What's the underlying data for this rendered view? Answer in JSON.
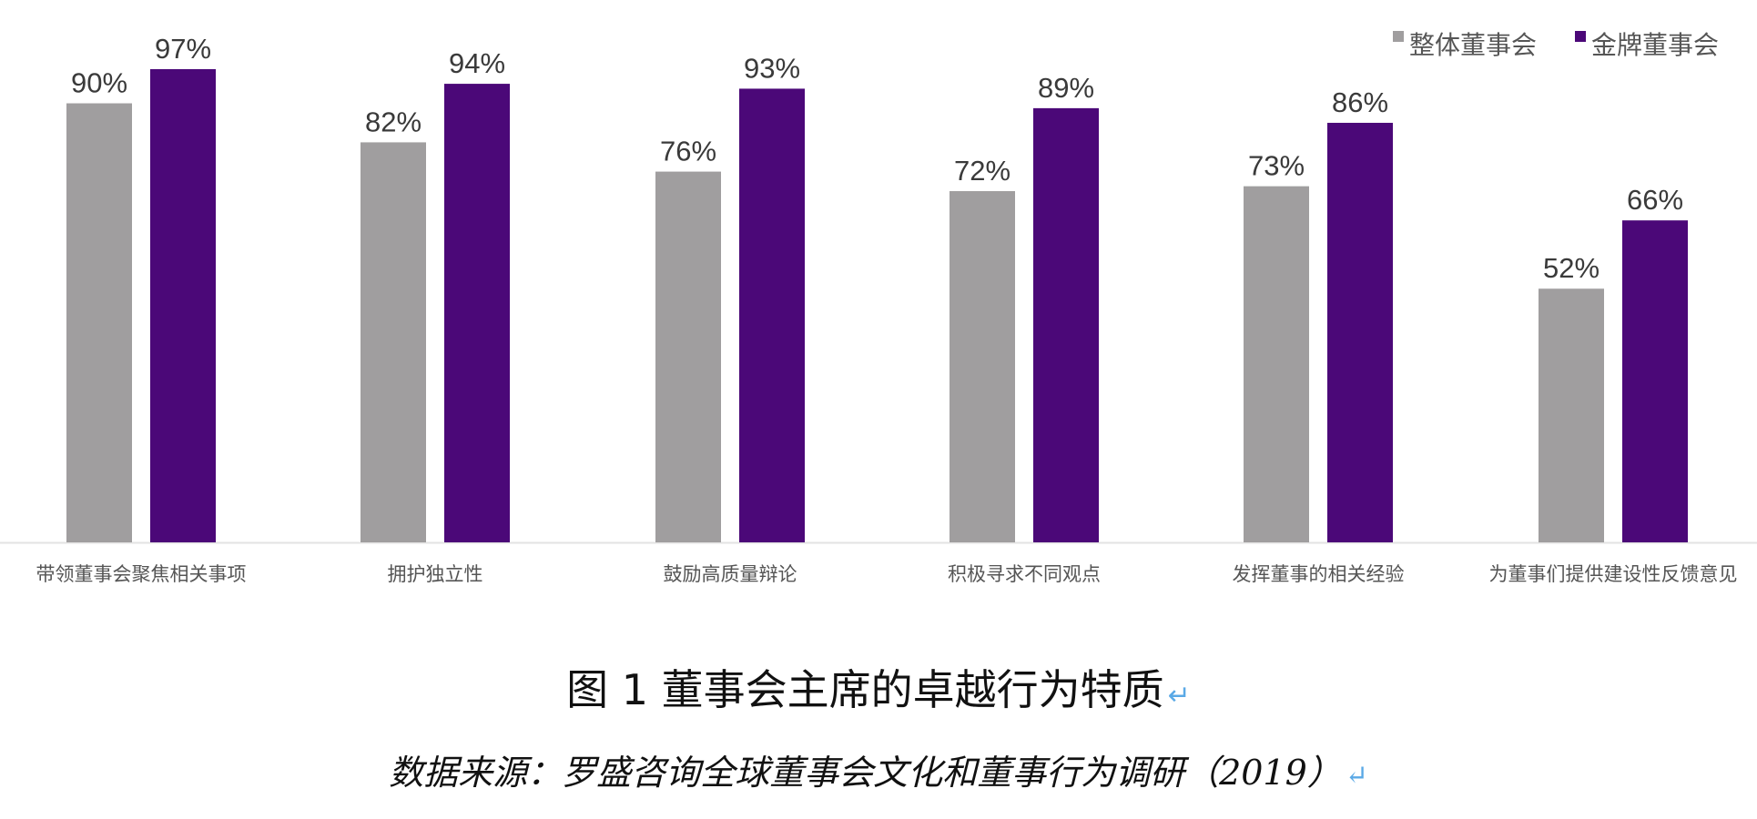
{
  "chart_data": {
    "type": "bar",
    "categories": [
      "带领董事会聚焦相关事项",
      "拥护独立性",
      "鼓励高质量辩论",
      "积极寻求不同观点",
      "发挥董事的相关经验",
      "为董事们提供建设性反馈意见"
    ],
    "series": [
      {
        "name": "整体董事会",
        "values": [
          90,
          82,
          76,
          72,
          73,
          52
        ],
        "labels": [
          "90%",
          "82%",
          "76%",
          "72%",
          "73%",
          "52%"
        ],
        "color": "#a09e9f"
      },
      {
        "name": "金牌董事会",
        "values": [
          97,
          94,
          93,
          89,
          86,
          66
        ],
        "labels": [
          "97%",
          "94%",
          "93%",
          "89%",
          "86%",
          "66%"
        ],
        "color": "#4b0878"
      }
    ],
    "ylim": [
      0,
      100
    ],
    "grid": false,
    "legend_position": "top-right"
  },
  "figure": {
    "title": "图 1 董事会主席的卓越行为特质",
    "source": "数据来源：罗盛咨询全球董事会文化和董事行为调研（2019）",
    "return_mark": "↵"
  }
}
